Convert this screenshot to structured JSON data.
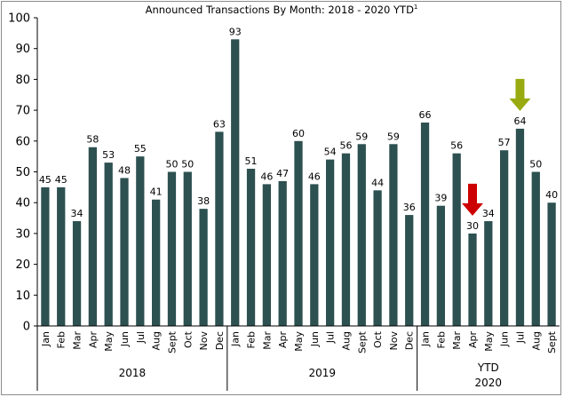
{
  "chart_data": {
    "type": "bar",
    "title": "Announced Transactions By Month: 2018 - 2020 YTD",
    "title_superscript": "1",
    "ylim": [
      0,
      100
    ],
    "yticks": [
      0,
      10,
      20,
      30,
      40,
      50,
      60,
      70,
      80,
      90,
      100
    ],
    "bar_color": "#2d5050",
    "groups": [
      {
        "label": "2018",
        "label_line2": "",
        "categories": [
          "Jan",
          "Feb",
          "Mar",
          "Apr",
          "May",
          "Jun",
          "Jul",
          "Aug",
          "Sept",
          "Oct",
          "Nov",
          "Dec"
        ],
        "values": [
          45,
          45,
          34,
          58,
          53,
          48,
          55,
          41,
          50,
          50,
          38,
          63
        ]
      },
      {
        "label": "2019",
        "label_line2": "",
        "categories": [
          "Jan",
          "Feb",
          "Mar",
          "Apr",
          "May",
          "Jun",
          "Jul",
          "Aug",
          "Sept",
          "Oct",
          "Nov",
          "Dec"
        ],
        "values": [
          93,
          51,
          46,
          47,
          60,
          46,
          54,
          56,
          59,
          44,
          59,
          36
        ]
      },
      {
        "label": "YTD",
        "label_line2": "2020",
        "categories": [
          "Jan",
          "Feb",
          "Mar",
          "Apr",
          "May",
          "Jun",
          "Jul",
          "Aug",
          "Sept"
        ],
        "values": [
          66,
          39,
          56,
          30,
          34,
          57,
          64,
          50,
          40
        ]
      }
    ],
    "annotations": [
      {
        "type": "down-arrow",
        "color": "#cc0000",
        "group": 2,
        "index": 3
      },
      {
        "type": "down-arrow",
        "color": "#99aa11",
        "group": 2,
        "index": 6
      }
    ]
  }
}
